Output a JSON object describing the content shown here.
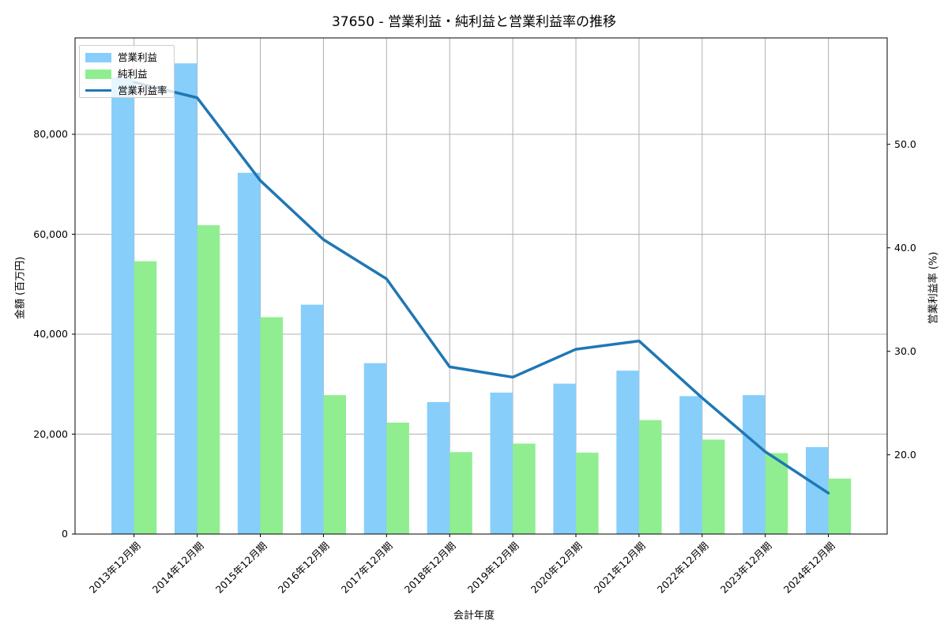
{
  "title": "37650 - 営業利益・純利益と営業利益率の推移",
  "chart_data": {
    "type": "bar",
    "subtype": "grouped-bars-with-line-overlay",
    "title": "37650 - 営業利益・純利益と営業利益率の推移",
    "xlabel": "会計年度",
    "ylabel_left": "金額 (百万円)",
    "ylabel_right": "営業利益率 (%)",
    "categories": [
      "2013年12月期",
      "2014年12月期",
      "2015年12月期",
      "2016年12月期",
      "2017年12月期",
      "2018年12月期",
      "2019年12月期",
      "2020年12月期",
      "2021年12月期",
      "2022年12月期",
      "2023年12月期",
      "2024年12月期"
    ],
    "series": [
      {
        "name": "営業利益",
        "type": "bar",
        "axis": "left",
        "color": "#87CEFA",
        "values": [
          91400,
          94200,
          72300,
          45900,
          34200,
          26400,
          28300,
          30100,
          32700,
          27600,
          27800,
          17400
        ]
      },
      {
        "name": "純利益",
        "type": "bar",
        "axis": "left",
        "color": "#90EE90",
        "values": [
          54600,
          61800,
          43400,
          27800,
          22300,
          16400,
          18100,
          16300,
          22800,
          18900,
          16200,
          11100
        ]
      },
      {
        "name": "営業利益率",
        "type": "line",
        "axis": "right",
        "color": "#1f77b4",
        "values": [
          56.0,
          54.5,
          46.5,
          40.8,
          37.0,
          28.5,
          27.5,
          30.2,
          31.0,
          25.5,
          20.3,
          16.3
        ]
      }
    ],
    "left_axis": {
      "ticks": [
        0,
        20000,
        40000,
        60000,
        80000
      ],
      "tick_labels": [
        "0",
        "20,000",
        "40,000",
        "60,000",
        "80,000"
      ],
      "range": [
        0,
        99300
      ]
    },
    "right_axis": {
      "ticks": [
        20,
        30,
        40,
        50
      ],
      "tick_labels": [
        "20.0",
        "30.0",
        "40.0",
        "50.0"
      ],
      "range": [
        12.3,
        60.3
      ]
    },
    "legend": {
      "position": "upper-left",
      "entries": [
        "営業利益",
        "純利益",
        "営業利益率"
      ]
    },
    "grid": true,
    "grid_color": "#b0b0b0"
  }
}
